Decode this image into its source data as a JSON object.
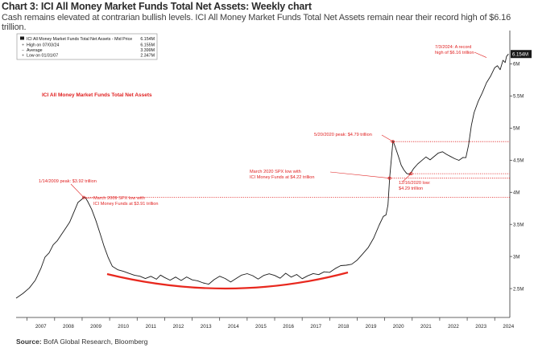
{
  "header": {
    "title": "Chart 3: ICI All Money Market Funds Total Net Assets: Weekly chart",
    "subtitle": "Cash remains elevated at contrarian bullish levels. ICI All Money Market Funds Total Net Assets remain near their record high of $6.16 trillion."
  },
  "source": {
    "label": "Source:",
    "text": " BofA Global Research, Bloomberg"
  },
  "legend": {
    "series_name": "ICI All Money Market Funds Total Net Assets - Mid Price",
    "series_value": "6.154M",
    "rows": [
      {
        "label": "High on 07/03/24",
        "value": "6.155M"
      },
      {
        "label": "Average",
        "value": "3.399M"
      },
      {
        "label": "Low on 01/31/07",
        "value": "2.347M"
      }
    ]
  },
  "colors": {
    "series": "#1a1a1a",
    "annotation": "#e02020",
    "axis": "#333333",
    "arc": "#e8281e"
  },
  "chart_data": {
    "type": "line",
    "title": "ICI All Money Market Funds Total Net Assets",
    "xlabel": "",
    "ylabel": "",
    "xlim": [
      2006.6,
      2024.55
    ],
    "ylim": [
      2.05,
      6.52
    ],
    "x_ticks": [
      "2007",
      "2008",
      "2009",
      "2010",
      "2011",
      "2012",
      "2013",
      "2014",
      "2015",
      "2016",
      "2017",
      "2018",
      "2019",
      "2020",
      "2021",
      "2022",
      "2023",
      "2024"
    ],
    "y_ticks": [
      {
        "value": 2.5,
        "label": "2.5M"
      },
      {
        "value": 3.0,
        "label": "3M"
      },
      {
        "value": 3.5,
        "label": "3.5M"
      },
      {
        "value": 4.0,
        "label": "4M"
      },
      {
        "value": 4.5,
        "label": "4.5M"
      },
      {
        "value": 5.0,
        "label": "5M"
      },
      {
        "value": 5.5,
        "label": "5.5M"
      },
      {
        "value": 6.0,
        "label": "6M"
      }
    ],
    "last_value_label": "6.154M",
    "last_value": 6.154,
    "series": [
      {
        "name": "ICI All Money Market Funds Total Net Assets - Mid Price",
        "x": [
          2006.6,
          2006.85,
          2007.08,
          2007.3,
          2007.5,
          2007.65,
          2007.8,
          2007.95,
          2008.1,
          2008.25,
          2008.4,
          2008.55,
          2008.7,
          2008.85,
          2009.0,
          2009.06,
          2009.12,
          2009.2,
          2009.35,
          2009.5,
          2009.65,
          2009.8,
          2009.95,
          2010.1,
          2010.3,
          2010.5,
          2010.7,
          2010.9,
          2011.1,
          2011.3,
          2011.5,
          2011.7,
          2011.85,
          2012.0,
          2012.2,
          2012.4,
          2012.6,
          2012.8,
          2013.0,
          2013.2,
          2013.4,
          2013.6,
          2013.8,
          2014.0,
          2014.2,
          2014.4,
          2014.6,
          2014.8,
          2015.0,
          2015.2,
          2015.4,
          2015.6,
          2015.8,
          2016.0,
          2016.2,
          2016.4,
          2016.6,
          2016.8,
          2017.0,
          2017.2,
          2017.4,
          2017.6,
          2017.8,
          2018.0,
          2018.2,
          2018.4,
          2018.6,
          2018.8,
          2019.0,
          2019.2,
          2019.4,
          2019.6,
          2019.8,
          2019.95,
          2020.05,
          2020.12,
          2020.18,
          2020.25,
          2020.3,
          2020.38,
          2020.5,
          2020.6,
          2020.7,
          2020.8,
          2020.9,
          2020.96,
          2021.05,
          2021.2,
          2021.35,
          2021.5,
          2021.65,
          2021.8,
          2021.95,
          2022.1,
          2022.25,
          2022.4,
          2022.55,
          2022.7,
          2022.85,
          2022.95,
          2023.05,
          2023.15,
          2023.25,
          2023.4,
          2023.55,
          2023.7,
          2023.85,
          2024.0,
          2024.1,
          2024.2,
          2024.3,
          2024.38,
          2024.43,
          2024.5
        ],
        "values": [
          2.35,
          2.42,
          2.5,
          2.62,
          2.8,
          2.98,
          3.05,
          3.18,
          3.25,
          3.35,
          3.45,
          3.55,
          3.7,
          3.85,
          3.9,
          3.92,
          3.91,
          3.85,
          3.72,
          3.55,
          3.35,
          3.15,
          2.98,
          2.85,
          2.8,
          2.78,
          2.75,
          2.72,
          2.7,
          2.66,
          2.69,
          2.64,
          2.7,
          2.66,
          2.62,
          2.67,
          2.62,
          2.68,
          2.64,
          2.63,
          2.6,
          2.58,
          2.65,
          2.7,
          2.66,
          2.6,
          2.65,
          2.7,
          2.72,
          2.69,
          2.64,
          2.7,
          2.73,
          2.71,
          2.67,
          2.75,
          2.69,
          2.73,
          2.66,
          2.7,
          2.73,
          2.71,
          2.75,
          2.74,
          2.8,
          2.85,
          2.86,
          2.88,
          2.95,
          3.05,
          3.15,
          3.3,
          3.5,
          3.63,
          3.65,
          3.8,
          4.22,
          4.55,
          4.79,
          4.7,
          4.55,
          4.42,
          4.35,
          4.3,
          4.29,
          4.32,
          4.38,
          4.45,
          4.5,
          4.55,
          4.5,
          4.55,
          4.6,
          4.62,
          4.58,
          4.55,
          4.52,
          4.5,
          4.55,
          4.55,
          4.75,
          5.05,
          5.25,
          5.42,
          5.55,
          5.7,
          5.8,
          5.93,
          5.96,
          5.9,
          6.05,
          6.02,
          6.12,
          6.154
        ]
      }
    ],
    "reference_lines": [
      {
        "value": 4.79,
        "label": "5/20/2020 peak: $4.79 trillion"
      },
      {
        "value": 4.29,
        "label": "12/16/2020 low: $4.29 trillion"
      },
      {
        "value": 4.22,
        "label": "March 2020 SPX low with ICI Money Funds at $4.22 trillion"
      },
      {
        "value": 3.92,
        "label": "1/14/2009 peak: $3.92 trillion"
      }
    ],
    "chart_subtitle": "ICI All Money Market Funds Total Net Assets",
    "annotations": [
      {
        "lines": [
          "7/3/2024: A record",
          "high of $6.16 trillion"
        ]
      },
      {
        "lines": [
          "5/20/2020 peak: $4.79 trillion"
        ]
      },
      {
        "lines": [
          "March 2020 SPX low with",
          "ICI Money Funds at $4.22 trillion"
        ]
      },
      {
        "lines": [
          "12/16/2020 low:",
          "$4.29 trillion"
        ]
      },
      {
        "lines": [
          "1/14/2009 peak: $3.92 trillion"
        ]
      },
      {
        "lines": [
          "March 2009 SPX low with",
          "ICI Money Funds at $3.91 trillion"
        ]
      }
    ]
  }
}
